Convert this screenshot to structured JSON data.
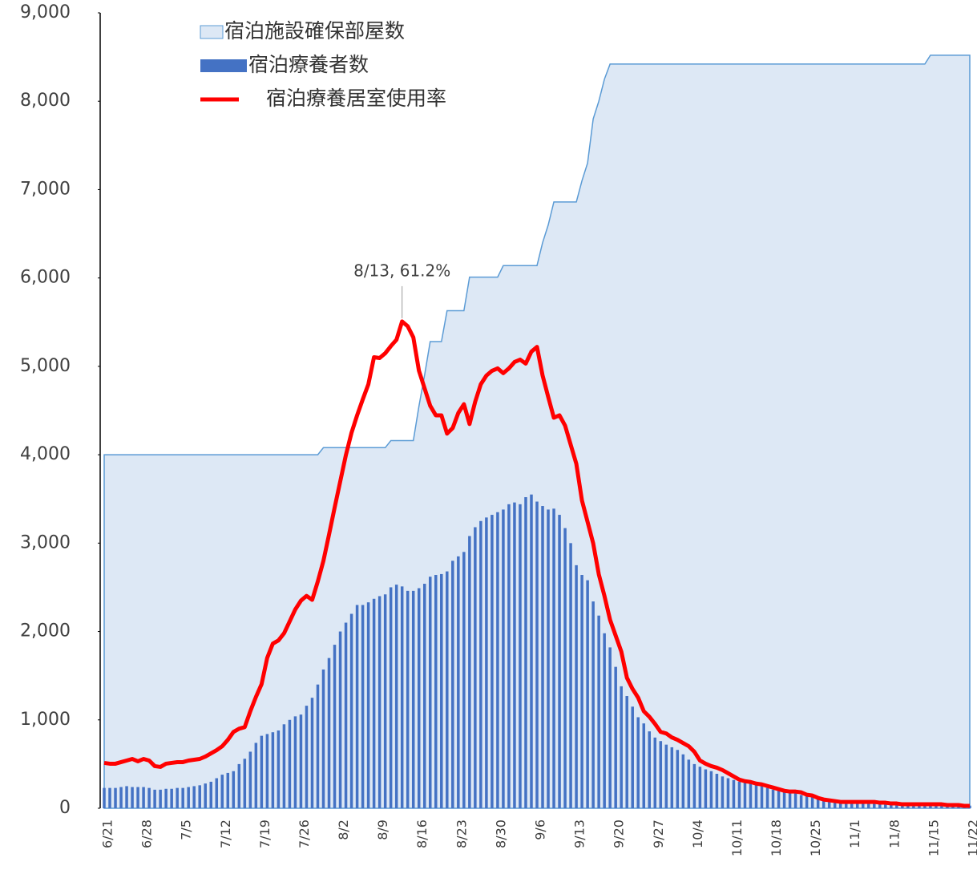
{
  "chart_data": {
    "type": "combo",
    "categories": [
      "6/21",
      null,
      null,
      null,
      null,
      null,
      null,
      "6/28",
      null,
      null,
      null,
      null,
      null,
      null,
      "7/5",
      null,
      null,
      null,
      null,
      null,
      null,
      "7/12",
      null,
      null,
      null,
      null,
      null,
      null,
      "7/19",
      null,
      null,
      null,
      null,
      null,
      null,
      "7/26",
      null,
      null,
      null,
      null,
      null,
      null,
      "8/2",
      null,
      null,
      null,
      null,
      null,
      null,
      "8/9",
      null,
      null,
      null,
      null,
      null,
      null,
      "8/16",
      null,
      null,
      null,
      null,
      null,
      null,
      "8/23",
      null,
      null,
      null,
      null,
      null,
      null,
      "8/30",
      null,
      null,
      null,
      null,
      null,
      null,
      "9/6",
      null,
      null,
      null,
      null,
      null,
      null,
      "9/13",
      null,
      null,
      null,
      null,
      null,
      null,
      "9/20",
      null,
      null,
      null,
      null,
      null,
      null,
      "9/27",
      null,
      null,
      null,
      null,
      null,
      null,
      "10/4",
      null,
      null,
      null,
      null,
      null,
      null,
      "10/11",
      null,
      null,
      null,
      null,
      null,
      null,
      "10/18",
      null,
      null,
      null,
      null,
      null,
      null,
      "10/25",
      null,
      null,
      null,
      null,
      null,
      null,
      "11/1",
      null,
      null,
      null,
      null,
      null,
      null,
      "11/8",
      null,
      null,
      null,
      null,
      null,
      null,
      "11/15",
      null,
      null,
      null,
      null,
      null,
      null,
      "11/22"
    ],
    "series": [
      {
        "name": "宿泊施設確保部屋数",
        "kind": "area",
        "color": "#dde8f5",
        "edge": "#5b9bd5",
        "values": [
          4000,
          4000,
          4000,
          4000,
          4000,
          4000,
          4000,
          4000,
          4000,
          4000,
          4000,
          4000,
          4000,
          4000,
          4000,
          4000,
          4000,
          4000,
          4000,
          4000,
          4000,
          4000,
          4000,
          4000,
          4000,
          4000,
          4000,
          4000,
          4000,
          4000,
          4000,
          4000,
          4000,
          4000,
          4000,
          4000,
          4000,
          4000,
          4000,
          4080,
          4080,
          4080,
          4080,
          4080,
          4080,
          4080,
          4080,
          4080,
          4080,
          4080,
          4080,
          4160,
          4160,
          4160,
          4160,
          4160,
          4550,
          4900,
          5280,
          5280,
          5280,
          5630,
          5630,
          5630,
          5630,
          6010,
          6010,
          6010,
          6010,
          6010,
          6010,
          6140,
          6140,
          6140,
          6140,
          6140,
          6140,
          6140,
          6400,
          6600,
          6860,
          6860,
          6860,
          6860,
          6860,
          7100,
          7300,
          7800,
          8000,
          8250,
          8420,
          8420,
          8420,
          8420,
          8420,
          8420,
          8420,
          8420,
          8420,
          8420,
          8420,
          8420,
          8420,
          8420,
          8420,
          8420,
          8420,
          8420,
          8420,
          8420,
          8420,
          8420,
          8420,
          8420,
          8420,
          8420,
          8420,
          8420,
          8420,
          8420,
          8420,
          8420,
          8420,
          8420,
          8420,
          8420,
          8420,
          8420,
          8420,
          8420,
          8420,
          8420,
          8420,
          8420,
          8420,
          8420,
          8420,
          8420,
          8420,
          8420,
          8420,
          8420,
          8420,
          8420,
          8420,
          8420,
          8420,
          8520,
          8520,
          8520,
          8520,
          8520,
          8520,
          8520,
          8520
        ]
      },
      {
        "name": "宿泊療養者数",
        "kind": "bar",
        "color": "#4472c4",
        "values": [
          230,
          230,
          230,
          240,
          250,
          240,
          240,
          240,
          230,
          210,
          210,
          220,
          220,
          230,
          230,
          240,
          250,
          260,
          280,
          300,
          340,
          380,
          400,
          420,
          500,
          560,
          640,
          740,
          820,
          840,
          860,
          880,
          950,
          1000,
          1040,
          1060,
          1160,
          1250,
          1400,
          1570,
          1700,
          1850,
          2000,
          2100,
          2200,
          2300,
          2300,
          2330,
          2370,
          2400,
          2420,
          2500,
          2530,
          2510,
          2460,
          2460,
          2490,
          2540,
          2620,
          2640,
          2650,
          2680,
          2800,
          2850,
          2900,
          3080,
          3180,
          3250,
          3290,
          3320,
          3350,
          3380,
          3440,
          3460,
          3440,
          3520,
          3550,
          3470,
          3420,
          3380,
          3390,
          3320,
          3170,
          3000,
          2750,
          2640,
          2580,
          2340,
          2180,
          1980,
          1820,
          1600,
          1380,
          1270,
          1150,
          1030,
          960,
          870,
          800,
          760,
          720,
          690,
          660,
          610,
          550,
          500,
          470,
          440,
          420,
          390,
          360,
          340,
          320,
          300,
          290,
          280,
          270,
          250,
          230,
          210,
          200,
          190,
          180,
          170,
          150,
          140,
          130,
          120,
          110,
          100,
          90,
          90,
          80,
          80,
          80,
          80,
          70,
          70,
          60,
          60,
          60,
          50,
          50,
          50,
          50,
          50,
          50,
          40,
          40,
          40,
          40,
          40,
          30,
          30,
          30
        ]
      },
      {
        "name": "宿泊療養居室使用率",
        "kind": "line",
        "axis": "y2",
        "color": "#ff0000",
        "values": [
          5.7,
          5.6,
          5.6,
          5.8,
          6.0,
          6.2,
          5.9,
          6.2,
          6.0,
          5.3,
          5.2,
          5.6,
          5.7,
          5.8,
          5.8,
          6.0,
          6.1,
          6.2,
          6.5,
          6.9,
          7.3,
          7.8,
          8.6,
          9.6,
          10.0,
          10.2,
          12.2,
          14.0,
          15.6,
          18.9,
          20.7,
          21.1,
          22.0,
          23.5,
          25.0,
          26.1,
          26.7,
          26.2,
          28.5,
          31.1,
          34.4,
          37.8,
          41.1,
          44.4,
          47.2,
          49.4,
          51.4,
          53.3,
          56.7,
          56.6,
          57.2,
          58.1,
          58.9,
          61.2,
          60.6,
          59.2,
          55.0,
          52.8,
          50.6,
          49.4,
          49.4,
          47.1,
          47.8,
          49.7,
          50.8,
          48.3,
          51.1,
          53.3,
          54.4,
          55.0,
          55.3,
          54.7,
          55.3,
          56.1,
          56.4,
          55.9,
          57.4,
          58.0,
          54.4,
          51.7,
          49.1,
          49.4,
          48.1,
          45.7,
          43.3,
          38.7,
          36.0,
          33.3,
          29.4,
          26.7,
          23.7,
          21.7,
          19.7,
          16.4,
          15.0,
          13.9,
          12.2,
          11.5,
          10.6,
          9.6,
          9.4,
          8.9,
          8.6,
          8.2,
          7.8,
          7.1,
          6.0,
          5.6,
          5.3,
          5.1,
          4.8,
          4.4,
          4.0,
          3.6,
          3.4,
          3.3,
          3.1,
          3.0,
          2.8,
          2.6,
          2.4,
          2.2,
          2.1,
          2.1,
          2.0,
          1.7,
          1.6,
          1.3,
          1.1,
          1.0,
          0.9,
          0.8,
          0.8,
          0.8,
          0.8,
          0.8,
          0.8,
          0.8,
          0.7,
          0.7,
          0.6,
          0.6,
          0.5,
          0.5,
          0.5,
          0.5,
          0.5,
          0.5,
          0.5,
          0.5,
          0.4,
          0.4,
          0.4,
          0.3,
          0.3
        ]
      }
    ],
    "ylim": [
      0,
      9000
    ],
    "yticks": [
      0,
      {
        "value": 1000,
        "label": "1,000"
      },
      {
        "value": 2000,
        "label": "2,000"
      },
      {
        "value": 3000,
        "label": "3,000"
      },
      {
        "value": 4000,
        "label": "4,000"
      },
      {
        "value": 5000,
        "label": "5,000"
      },
      {
        "value": 6000,
        "label": "6,000"
      },
      {
        "value": 7000,
        "label": "7,000"
      },
      {
        "value": 8000,
        "label": "8,000"
      },
      {
        "value": 9000,
        "label": "9,000"
      }
    ],
    "y2lim": [
      0,
      100
    ],
    "annotation": "8/13, 61.2%",
    "legend": "top-left"
  }
}
